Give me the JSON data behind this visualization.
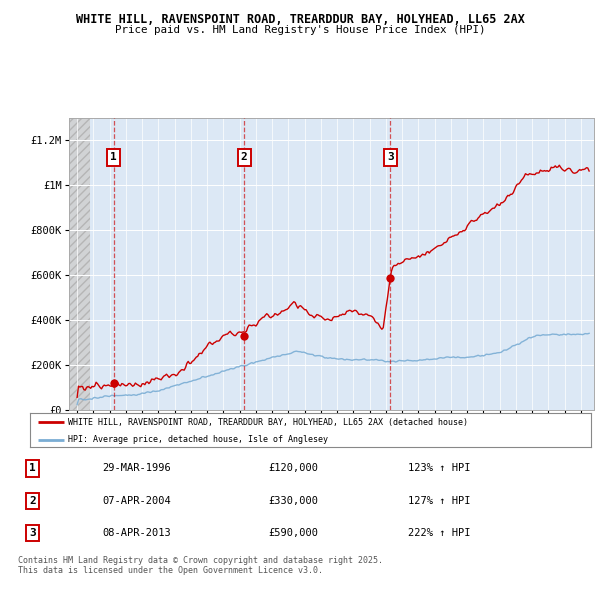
{
  "title1": "WHITE HILL, RAVENSPOINT ROAD, TREARDDUR BAY, HOLYHEAD, LL65 2AX",
  "title2": "Price paid vs. HM Land Registry's House Price Index (HPI)",
  "sale_dates": [
    1996.24,
    2004.27,
    2013.27
  ],
  "sale_prices": [
    120000,
    330000,
    590000
  ],
  "sale_labels": [
    "1",
    "2",
    "3"
  ],
  "sale_date_strings": [
    "29-MAR-1996",
    "07-APR-2004",
    "08-APR-2013"
  ],
  "sale_price_strings": [
    "£120,000",
    "£330,000",
    "£590,000"
  ],
  "sale_hpi_strings": [
    "123% ↑ HPI",
    "127% ↑ HPI",
    "222% ↑ HPI"
  ],
  "legend_line1": "WHITE HILL, RAVENSPOINT ROAD, TREARDDUR BAY, HOLYHEAD, LL65 2AX (detached house)",
  "legend_line2": "HPI: Average price, detached house, Isle of Anglesey",
  "footer": "Contains HM Land Registry data © Crown copyright and database right 2025.\nThis data is licensed under the Open Government Licence v3.0.",
  "red_color": "#cc0000",
  "blue_color": "#7aadd4",
  "plot_bg_color": "#dce8f5",
  "hatch_color": "#c8c8c8",
  "ylim": [
    0,
    1300000
  ],
  "xlim_start": 1993.5,
  "xlim_end": 2025.8,
  "yticks": [
    0,
    200000,
    400000,
    600000,
    800000,
    1000000,
    1200000
  ],
  "ytick_labels": [
    "£0",
    "£200K",
    "£400K",
    "£600K",
    "£800K",
    "£1M",
    "£1.2M"
  ]
}
